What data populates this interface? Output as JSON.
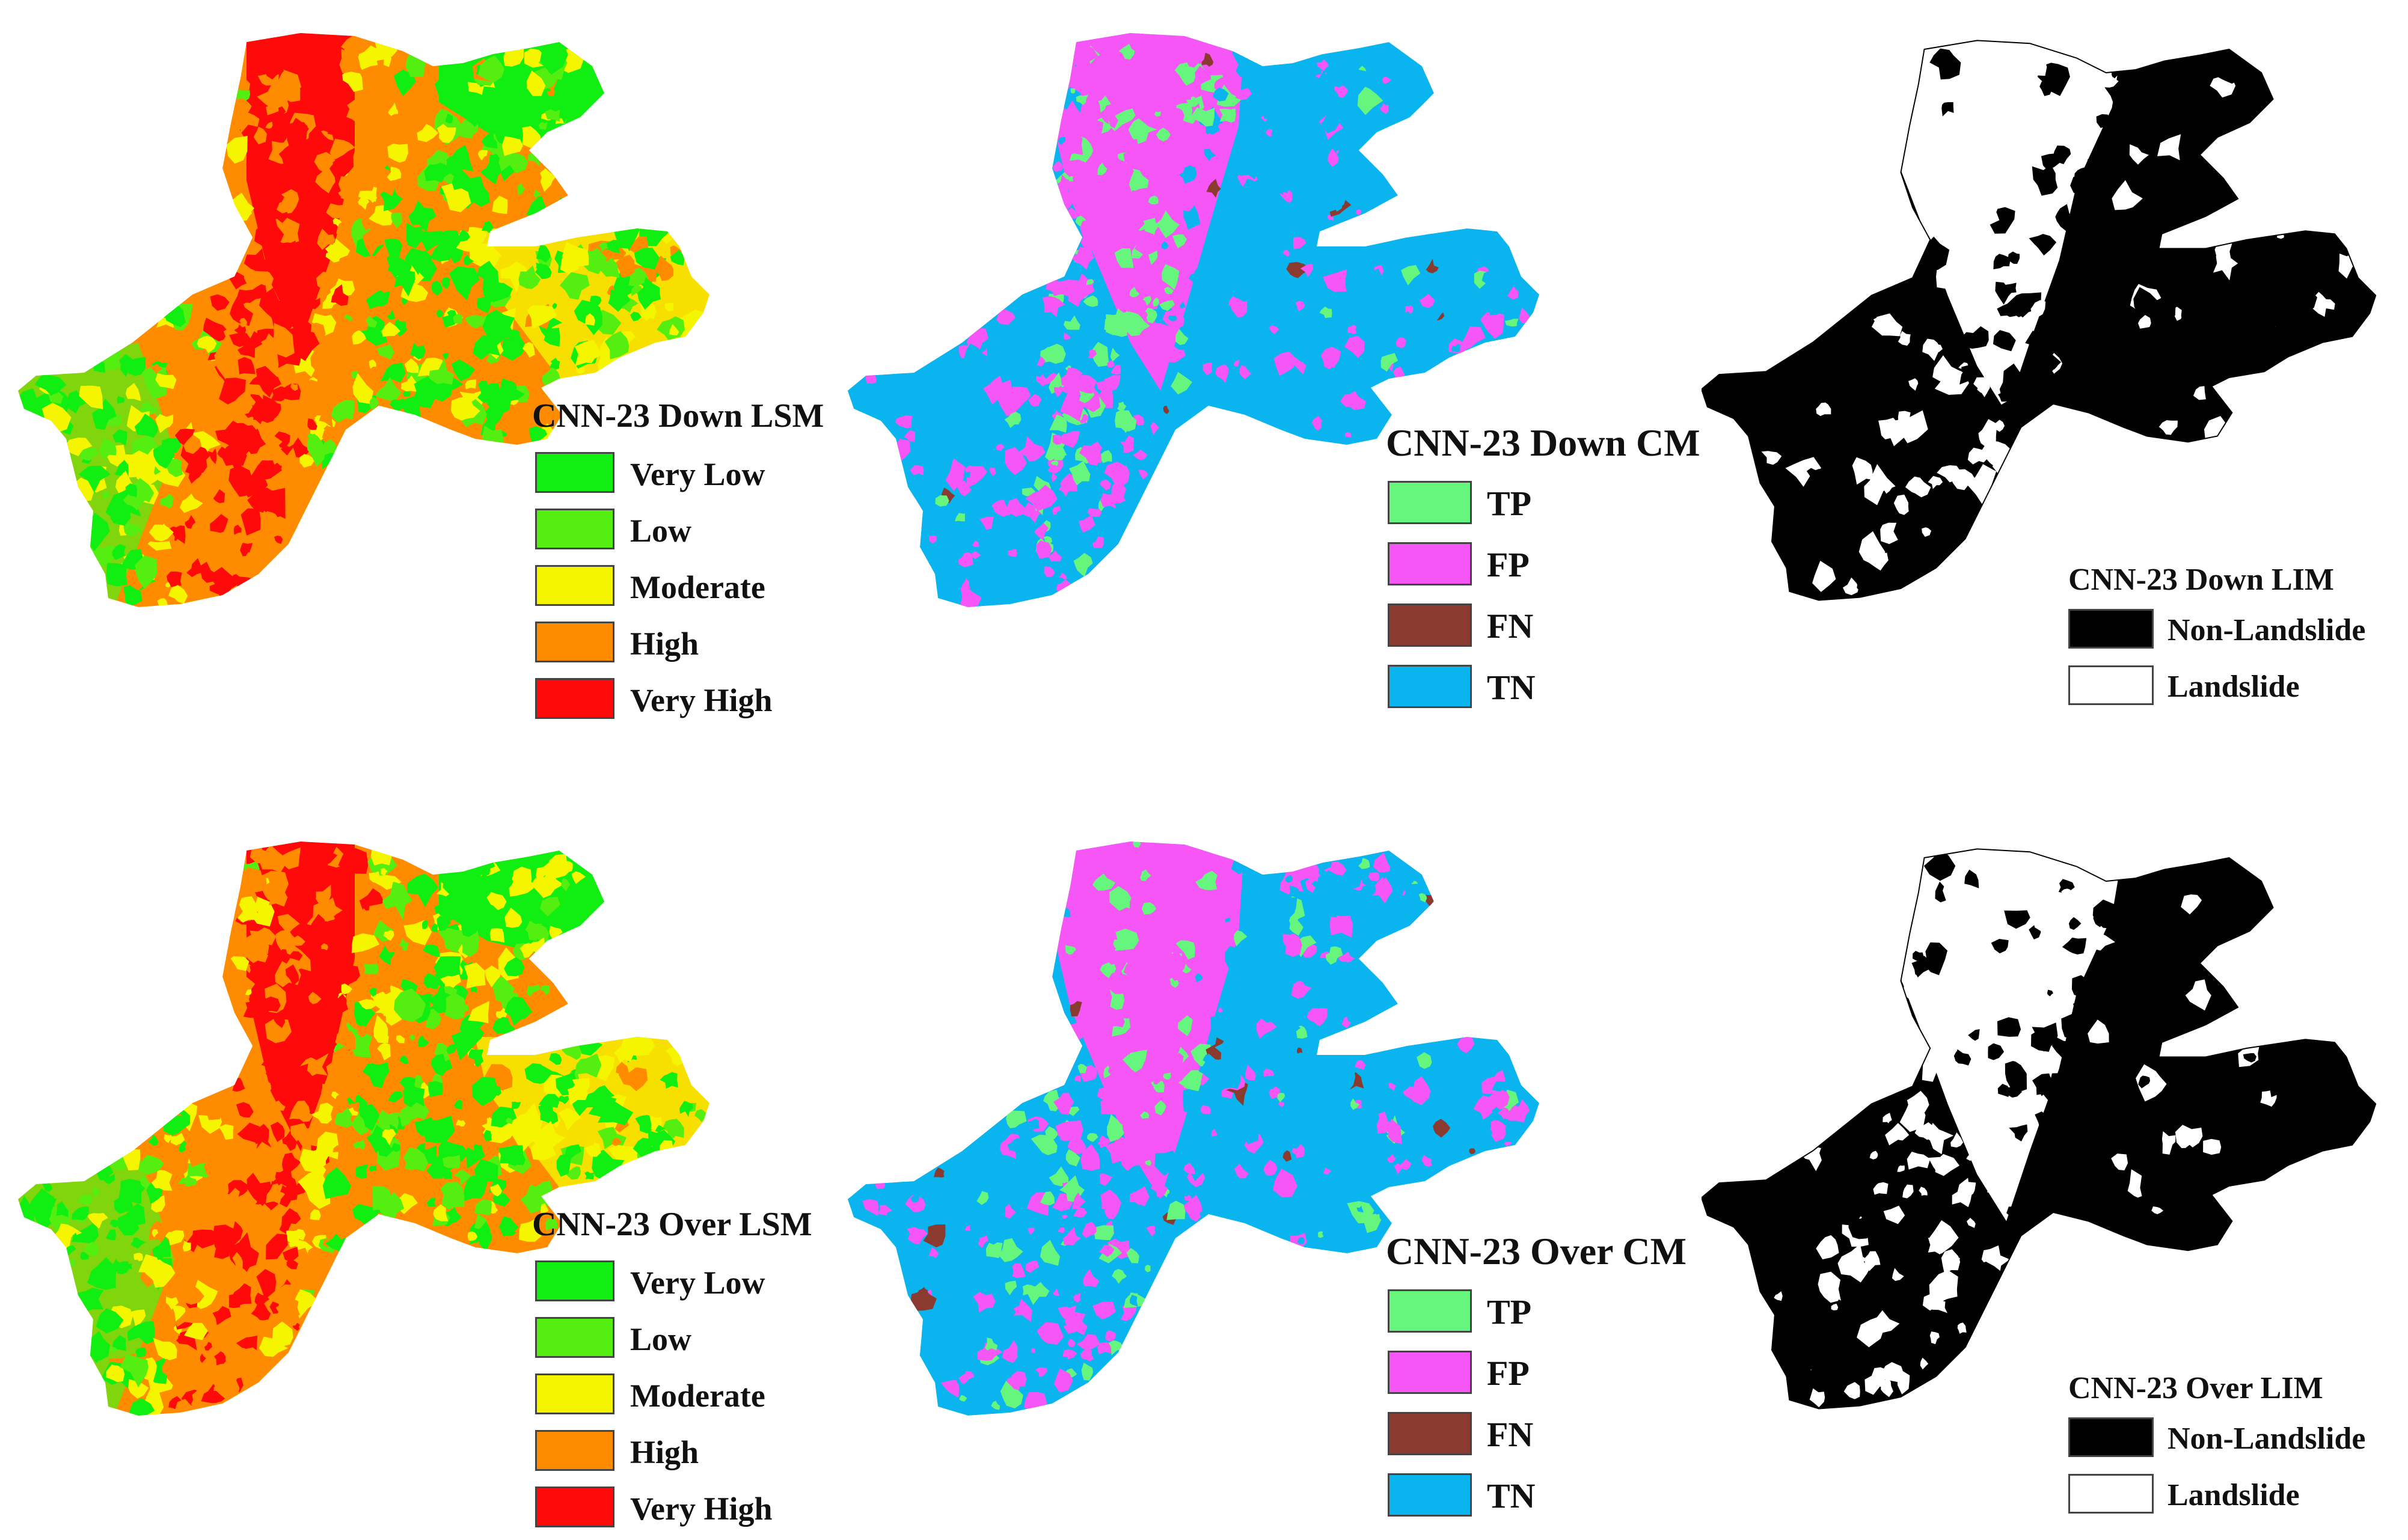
{
  "colors": {
    "very_low": "#11ee11",
    "low": "#55ee11",
    "moderate": "#f5f500",
    "high": "#ff8c00",
    "very_high": "#ff0a0a",
    "tp": "#66f57d",
    "fp": "#f556f5",
    "fn": "#8b3a30",
    "tn": "#0ab4ef",
    "non_landslide": "#000000",
    "landslide": "#ffffff"
  },
  "panels": [
    {
      "id": "down-lsm",
      "kind": "lsm",
      "legend_title": "CNN-23 Down LSM",
      "items": [
        {
          "label": "Very Low",
          "color": "#11ee11"
        },
        {
          "label": "Low",
          "color": "#55ee11"
        },
        {
          "label": "Moderate",
          "color": "#f5f500"
        },
        {
          "label": "High",
          "color": "#ff8c00"
        },
        {
          "label": "Very High",
          "color": "#ff0a0a"
        }
      ]
    },
    {
      "id": "down-cm",
      "kind": "cm",
      "legend_title": "CNN-23 Down CM",
      "items": [
        {
          "label": "TP",
          "color": "#66f57d"
        },
        {
          "label": "FP",
          "color": "#f556f5"
        },
        {
          "label": "FN",
          "color": "#8b3a30"
        },
        {
          "label": "TN",
          "color": "#0ab4ef"
        }
      ]
    },
    {
      "id": "down-lim",
      "kind": "lim",
      "legend_title": "CNN-23 Down LIM",
      "items": [
        {
          "label": "Non-Landslide",
          "color": "#000000"
        },
        {
          "label": "Landslide",
          "color": "#ffffff"
        }
      ]
    },
    {
      "id": "over-lsm",
      "kind": "lsm",
      "legend_title": "CNN-23 Over LSM",
      "items": [
        {
          "label": "Very Low",
          "color": "#11ee11"
        },
        {
          "label": "Low",
          "color": "#55ee11"
        },
        {
          "label": "Moderate",
          "color": "#f5f500"
        },
        {
          "label": "High",
          "color": "#ff8c00"
        },
        {
          "label": "Very High",
          "color": "#ff0a0a"
        }
      ]
    },
    {
      "id": "over-cm",
      "kind": "cm",
      "legend_title": "CNN-23 Over CM",
      "items": [
        {
          "label": "TP",
          "color": "#66f57d"
        },
        {
          "label": "FP",
          "color": "#f556f5"
        },
        {
          "label": "FN",
          "color": "#8b3a30"
        },
        {
          "label": "TN",
          "color": "#0ab4ef"
        }
      ]
    },
    {
      "id": "over-lim",
      "kind": "lim",
      "legend_title": "CNN-23 Over LIM",
      "items": [
        {
          "label": "Non-Landslide",
          "color": "#000000"
        },
        {
          "label": "Landslide",
          "color": "#ffffff"
        }
      ]
    }
  ]
}
